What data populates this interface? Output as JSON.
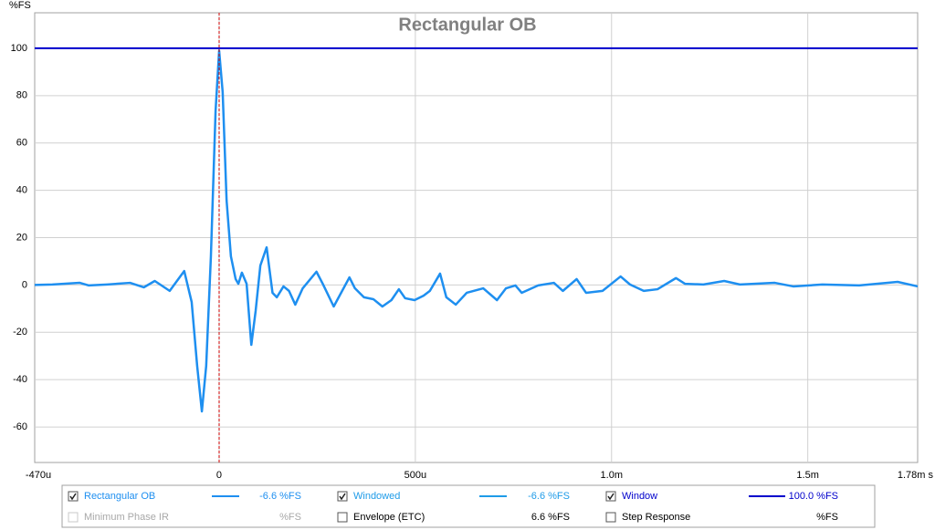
{
  "chart_data": {
    "type": "line",
    "title": "Rectangular OB",
    "ylabel": "%FS",
    "xlim": [
      -0.00047,
      0.00178
    ],
    "ylim": [
      -75,
      115
    ],
    "xticks": [
      {
        "value": -0.00047,
        "label": "-470u"
      },
      0,
      {
        "value": 0.0005,
        "label": "500u"
      },
      {
        "value": 0.001,
        "label": "1.0m"
      },
      {
        "value": 0.0015,
        "label": "1.5m"
      },
      {
        "value": 0.00178,
        "label": "1.78m s"
      }
    ],
    "yticks": [
      -60,
      -40,
      -20,
      0,
      20,
      40,
      60,
      80,
      100
    ],
    "grid": true,
    "marker_x": 0,
    "marker_color": "#cc0000",
    "series": [
      {
        "name": "Rectangular OB",
        "color": "#1e8ff0",
        "x": [
          -0.00047,
          -0.000425,
          -0.000355,
          -0.000332,
          -0.000285,
          -0.000227,
          -0.000192,
          -0.000164,
          -0.000126,
          -8.9e-05,
          -7e-05,
          -5.6e-05,
          -4.4e-05,
          -3.3e-05,
          -2.1e-05,
          -9e-06,
          0,
          9e-06,
          1.9e-05,
          3e-05,
          4.2e-05,
          4.9e-05,
          5.8e-05,
          7e-05,
          8.2e-05,
          9.3e-05,
          0.000105,
          0.000121,
          0.000136,
          0.000147,
          0.000164,
          0.000178,
          0.000194,
          0.000213,
          0.000248,
          0.000264,
          0.000292,
          0.000332,
          0.000346,
          0.000369,
          0.000393,
          0.000416,
          0.000439,
          0.000458,
          0.000474,
          0.000498,
          0.000521,
          0.000537,
          0.000563,
          0.000579,
          0.000603,
          0.000631,
          0.000673,
          0.000708,
          0.000731,
          0.000755,
          0.000771,
          0.000813,
          0.000853,
          0.000876,
          0.000911,
          0.000935,
          0.000977,
          0.001023,
          0.001047,
          0.001082,
          0.001117,
          0.001164,
          0.001187,
          0.001234,
          0.001287,
          0.001327,
          0.001416,
          0.001463,
          0.001537,
          0.001631,
          0.001729,
          0.00178
        ],
        "values": [
          0,
          0.2,
          0.9,
          -0.2,
          0.2,
          0.9,
          -1,
          1.7,
          -2.5,
          5.9,
          -7.2,
          -34.2,
          -53.4,
          -34.2,
          12.1,
          73.8,
          99,
          81.5,
          35.7,
          12.1,
          2.5,
          0.5,
          5.2,
          0.5,
          -25.3,
          -11,
          8.2,
          15.9,
          -3.3,
          -5.2,
          -0.6,
          -2.5,
          -8.3,
          -1.4,
          5.6,
          0.5,
          -9.1,
          3.2,
          -1.4,
          -5.2,
          -6,
          -9.1,
          -6.4,
          -1.8,
          -5.6,
          -6.4,
          -4.5,
          -2.5,
          4.8,
          -5.2,
          -8.3,
          -3.3,
          -1.4,
          -6.4,
          -1.4,
          -0.2,
          -3.3,
          -0.2,
          0.9,
          -2.5,
          2.5,
          -3.3,
          -2.5,
          3.6,
          0.2,
          -2.5,
          -1.8,
          2.9,
          0.5,
          0.2,
          1.7,
          0.2,
          0.9,
          -0.6,
          0.2,
          -0.2,
          1.3,
          -0.6
        ]
      },
      {
        "name": "Window",
        "color": "#0000cc",
        "x": [
          -0.00047,
          0.00178
        ],
        "values": [
          100,
          100
        ]
      }
    ],
    "legend_items": [
      {
        "label": "Rectangular OB",
        "value_text": "-6.6 %FS",
        "checked": true,
        "enabled": true,
        "color": "#1e8ff0"
      },
      {
        "label": "Windowed",
        "value_text": "-6.6 %FS",
        "checked": true,
        "enabled": true,
        "color": "#1e9be8"
      },
      {
        "label": "Window",
        "value_text": "100.0 %FS",
        "checked": true,
        "enabled": true,
        "color": "#0000cc"
      },
      {
        "label": "Minimum Phase IR",
        "value_text": "%FS",
        "checked": false,
        "enabled": false,
        "color": null
      },
      {
        "label": "Envelope (ETC)",
        "value_text": "6.6 %FS",
        "checked": false,
        "enabled": true,
        "color": null
      },
      {
        "label": "Step Response",
        "value_text": "%FS",
        "checked": false,
        "enabled": true,
        "color": null
      }
    ]
  }
}
